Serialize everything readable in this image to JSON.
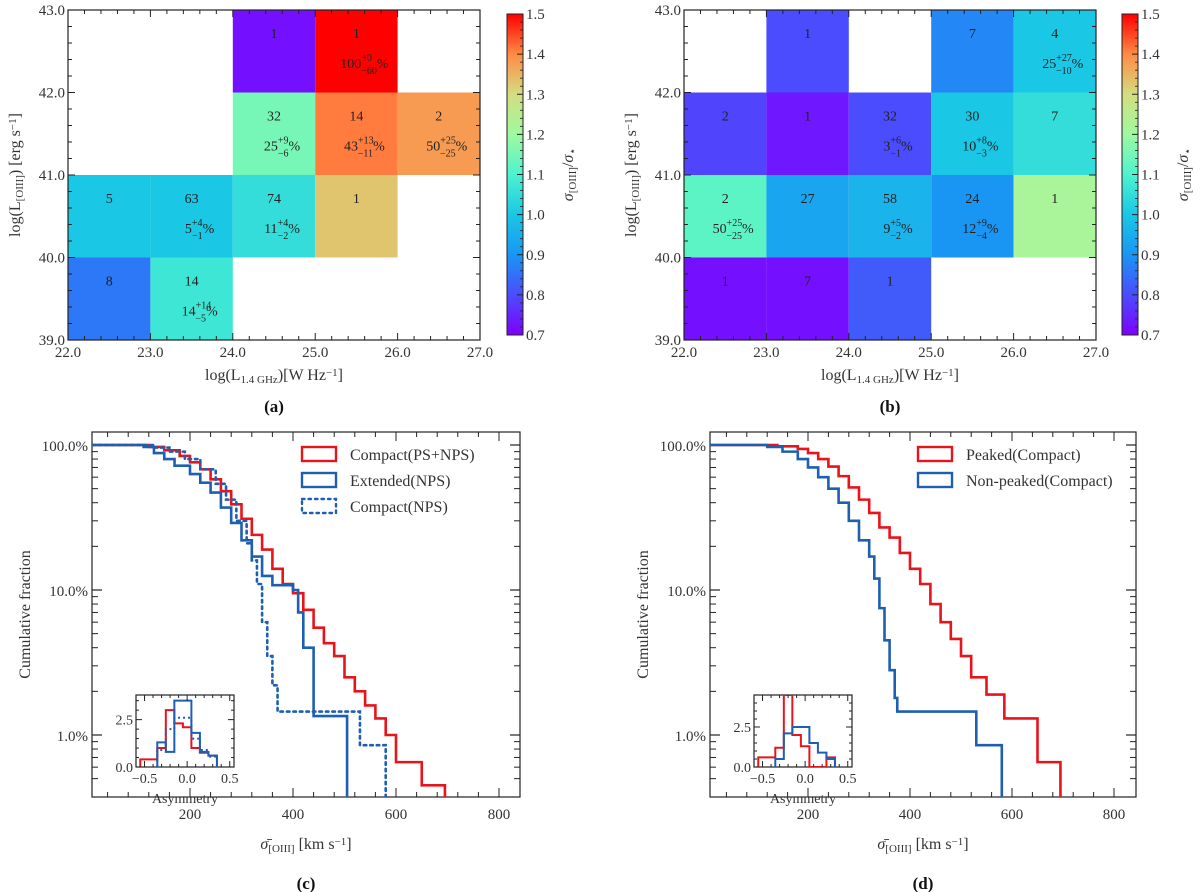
{
  "chart_data": [
    {
      "id": "a",
      "type": "heatmap",
      "panel_label": "(a)",
      "xlabel": "log(L_{1.4 GHz})[W Hz^{-1}]",
      "ylabel": "log(L_{[OIII]}) [erg s^{-1}]",
      "xlim": [
        22.0,
        27.0
      ],
      "ylim": [
        39.0,
        43.0
      ],
      "xticks": [
        "22.0",
        "23.0",
        "24.0",
        "25.0",
        "26.0",
        "27.0"
      ],
      "yticks": [
        "39.0",
        "40.0",
        "41.0",
        "42.0",
        "43.0"
      ],
      "colorbar": {
        "label": "σ_[OIII]/σ_⋆",
        "range": [
          0.7,
          1.5
        ],
        "ticks": [
          "0.7",
          "0.8",
          "0.9",
          "1.0",
          "1.1",
          "1.2",
          "1.3",
          "1.4",
          "1.5"
        ]
      },
      "cells": [
        {
          "x": [
            24,
            25
          ],
          "y": [
            42,
            43
          ],
          "value": 0.72,
          "count": "1",
          "pct": null
        },
        {
          "x": [
            25,
            26
          ],
          "y": [
            42,
            43
          ],
          "value": 1.5,
          "count": "1",
          "pct": {
            "v": "100",
            "up": "+0",
            "dn": "−60"
          }
        },
        {
          "x": [
            24,
            25
          ],
          "y": [
            41,
            42
          ],
          "value": 1.15,
          "count": "32",
          "pct": {
            "v": "25",
            "up": "+9",
            "dn": "−6"
          }
        },
        {
          "x": [
            25,
            26
          ],
          "y": [
            41,
            42
          ],
          "value": 1.41,
          "count": "14",
          "pct": {
            "v": "43",
            "up": "+13",
            "dn": "−11"
          }
        },
        {
          "x": [
            26,
            27
          ],
          "y": [
            41,
            42
          ],
          "value": 1.38,
          "count": "2",
          "pct": {
            "v": "50",
            "up": "+25",
            "dn": "−25"
          }
        },
        {
          "x": [
            22,
            23
          ],
          "y": [
            40,
            41
          ],
          "value": 1.0,
          "count": "5",
          "pct": null
        },
        {
          "x": [
            23,
            24
          ],
          "y": [
            40,
            41
          ],
          "value": 1.0,
          "count": "63",
          "pct": {
            "v": "5",
            "up": "+4",
            "dn": "−1"
          }
        },
        {
          "x": [
            24,
            25
          ],
          "y": [
            40,
            41
          ],
          "value": 1.05,
          "count": "74",
          "pct": {
            "v": "11",
            "up": "+4",
            "dn": "−2"
          }
        },
        {
          "x": [
            25,
            26
          ],
          "y": [
            40,
            41
          ],
          "value": 1.33,
          "count": "1",
          "pct": null
        },
        {
          "x": [
            22,
            23
          ],
          "y": [
            39,
            40
          ],
          "value": 0.86,
          "count": "8",
          "pct": null
        },
        {
          "x": [
            23,
            24
          ],
          "y": [
            39,
            40
          ],
          "value": 1.07,
          "count": "14",
          "pct": {
            "v": "14",
            "up": "+14",
            "dn": "−5"
          }
        }
      ]
    },
    {
      "id": "b",
      "type": "heatmap",
      "panel_label": "(b)",
      "xlabel": "log(L_{1.4 GHz})[W Hz^{-1}]",
      "ylabel": "log(L_{[OIII]}) [erg s^{-1}]",
      "xlim": [
        22.0,
        27.0
      ],
      "ylim": [
        39.0,
        43.0
      ],
      "xticks": [
        "22.0",
        "23.0",
        "24.0",
        "25.0",
        "26.0",
        "27.0"
      ],
      "yticks": [
        "39.0",
        "40.0",
        "41.0",
        "42.0",
        "43.0"
      ],
      "colorbar": {
        "label": "σ_[OIII]/σ_⋆",
        "range": [
          0.7,
          1.5
        ],
        "ticks": [
          "0.7",
          "0.8",
          "0.9",
          "1.0",
          "1.1",
          "1.2",
          "1.3",
          "1.4",
          "1.5"
        ]
      },
      "cells": [
        {
          "x": [
            23,
            24
          ],
          "y": [
            42,
            43
          ],
          "value": 0.8,
          "count": "1",
          "pct": null
        },
        {
          "x": [
            25,
            26
          ],
          "y": [
            42,
            43
          ],
          "value": 0.88,
          "count": "7",
          "pct": null
        },
        {
          "x": [
            26,
            27
          ],
          "y": [
            42,
            43
          ],
          "value": 1.0,
          "count": "4",
          "pct": {
            "v": "25",
            "up": "+27",
            "dn": "−10"
          }
        },
        {
          "x": [
            22,
            23
          ],
          "y": [
            41,
            42
          ],
          "value": 0.79,
          "count": "2",
          "pct": null
        },
        {
          "x": [
            23,
            24
          ],
          "y": [
            41,
            42
          ],
          "value": 0.73,
          "count": "1",
          "pct": null
        },
        {
          "x": [
            24,
            25
          ],
          "y": [
            41,
            42
          ],
          "value": 0.8,
          "count": "32",
          "pct": {
            "v": "3",
            "up": "+6",
            "dn": "−1"
          }
        },
        {
          "x": [
            25,
            26
          ],
          "y": [
            41,
            42
          ],
          "value": 1.0,
          "count": "30",
          "pct": {
            "v": "10",
            "up": "+8",
            "dn": "−3"
          }
        },
        {
          "x": [
            26,
            27
          ],
          "y": [
            41,
            42
          ],
          "value": 1.05,
          "count": "7",
          "pct": null
        },
        {
          "x": [
            22,
            23
          ],
          "y": [
            40,
            41
          ],
          "value": 1.12,
          "count": "2",
          "pct": {
            "v": "50",
            "up": "+25",
            "dn": "−25"
          }
        },
        {
          "x": [
            23,
            24
          ],
          "y": [
            40,
            41
          ],
          "value": 0.93,
          "count": "27",
          "pct": null
        },
        {
          "x": [
            24,
            25
          ],
          "y": [
            40,
            41
          ],
          "value": 0.96,
          "count": "58",
          "pct": {
            "v": "9",
            "up": "+5",
            "dn": "−2"
          }
        },
        {
          "x": [
            25,
            26
          ],
          "y": [
            40,
            41
          ],
          "value": 0.9,
          "count": "24",
          "pct": {
            "v": "12",
            "up": "+9",
            "dn": "−4"
          }
        },
        {
          "x": [
            26,
            27
          ],
          "y": [
            40,
            41
          ],
          "value": 1.22,
          "count": "1",
          "pct": null
        },
        {
          "x": [
            22,
            23
          ],
          "y": [
            39,
            40
          ],
          "value": 0.72,
          "count": "1",
          "pct": null
        },
        {
          "x": [
            23,
            24
          ],
          "y": [
            39,
            40
          ],
          "value": 0.72,
          "count": "7",
          "pct": null
        },
        {
          "x": [
            24,
            25
          ],
          "y": [
            39,
            40
          ],
          "value": 0.82,
          "count": "1",
          "pct": null
        }
      ]
    },
    {
      "id": "c",
      "type": "line",
      "panel_label": "(c)",
      "xlabel": "σ̄_[OIII] [km s^{-1}]",
      "ylabel": "Cumulative  fraction",
      "xlim": [
        0,
        840
      ],
      "ylim_percent": [
        0.42,
        110
      ],
      "yscale": "log",
      "xticks": [
        "200",
        "400",
        "600",
        "800"
      ],
      "yticks": [
        "1.0%",
        "10.0%",
        "100.0%"
      ],
      "legend_position": "top-right",
      "series": [
        {
          "name": "Compact(PS+NPS)",
          "color": "#e8141b",
          "style": "solid",
          "x": [
            20,
            90,
            120,
            150,
            180,
            200,
            220,
            240,
            260,
            280,
            300,
            320,
            340,
            360,
            380,
            400,
            420,
            440,
            460,
            480,
            500,
            520,
            540,
            560,
            580,
            600,
            650,
            695,
            695
          ],
          "y": [
            100,
            100,
            97,
            92,
            84,
            76,
            68,
            58,
            48,
            39,
            31,
            24,
            19,
            14,
            11,
            9.5,
            7.3,
            5.5,
            4.3,
            3.5,
            2.5,
            2.0,
            1.6,
            1.3,
            1.0,
            0.65,
            0.45,
            0.42,
            0.42
          ]
        },
        {
          "name": "Extended(NPS)",
          "color": "#1f5fb0",
          "style": "solid",
          "x": [
            20,
            90,
            110,
            130,
            150,
            170,
            200,
            220,
            240,
            260,
            280,
            300,
            320,
            340,
            360,
            380,
            400,
            410,
            420,
            440,
            505,
            505
          ],
          "y": [
            100,
            100,
            97,
            88,
            80,
            72,
            63,
            55,
            47,
            37,
            29,
            22,
            17,
            12.5,
            10.8,
            10.8,
            10,
            7,
            4,
            1.35,
            1.35,
            0.42
          ]
        },
        {
          "name": "Compact(NPS)",
          "color": "#1f5fb0",
          "style": "dotted",
          "x": [
            20,
            100,
            130,
            160,
            190,
            220,
            250,
            270,
            290,
            310,
            320,
            330,
            340,
            350,
            360,
            370,
            375,
            530,
            530,
            580,
            580
          ],
          "y": [
            100,
            100,
            96,
            90,
            80,
            68,
            54,
            42,
            30,
            21,
            16,
            11,
            6,
            3.5,
            2.2,
            1.45,
            1.45,
            1.45,
            0.85,
            0.85,
            0.42
          ]
        }
      ],
      "inset": {
        "xlabel": "Asymmetry",
        "xlim": [
          -0.6,
          0.55
        ],
        "ylim": [
          0,
          3.8
        ],
        "xticks": [
          "−0.5",
          "0.0",
          "0.5"
        ],
        "yticks": [
          "0.0",
          "2.5"
        ],
        "series": [
          {
            "name": "Compact(PS+NPS)",
            "color": "#e8141b",
            "style": "solid",
            "edges": [
              -0.55,
              -0.45,
              -0.35,
              -0.25,
              -0.15,
              -0.05,
              0.05,
              0.15,
              0.25,
              0.35
            ],
            "values": [
              0.4,
              0.4,
              1.0,
              3.0,
              2.3,
              2.1,
              1.0,
              0.75,
              0.6
            ]
          },
          {
            "name": "Extended(NPS)",
            "color": "#1f5fb0",
            "style": "solid",
            "edges": [
              -0.35,
              -0.25,
              -0.15,
              -0.05,
              0.05,
              0.15,
              0.25,
              0.35
            ],
            "values": [
              1.3,
              0.8,
              3.5,
              3.5,
              1.8,
              0.8,
              0.6
            ]
          },
          {
            "name": "Compact(NPS)",
            "color": "#1f5fb0",
            "style": "dotted",
            "edges": [
              -0.35,
              -0.25,
              -0.15,
              -0.05,
              0.05,
              0.15,
              0.25,
              0.35
            ],
            "values": [
              0.9,
              2.0,
              2.6,
              2.6,
              1.5,
              0.9,
              0.55
            ]
          }
        ]
      }
    },
    {
      "id": "d",
      "type": "line",
      "panel_label": "(d)",
      "xlabel": "σ̄_[OIII] [km s^{-1}]",
      "ylabel": "Cumulative  fraction",
      "xlim": [
        0,
        840
      ],
      "ylim_percent": [
        0.42,
        110
      ],
      "yscale": "log",
      "xticks": [
        "200",
        "400",
        "600",
        "800"
      ],
      "yticks": [
        "1.0%",
        "10.0%",
        "100.0%"
      ],
      "legend_position": "top-right",
      "series": [
        {
          "name": "Peaked(Compact)",
          "color": "#e8141b",
          "style": "solid",
          "x": [
            20,
            100,
            140,
            180,
            200,
            220,
            240,
            260,
            280,
            300,
            320,
            340,
            360,
            380,
            400,
            420,
            440,
            460,
            480,
            500,
            520,
            550,
            585,
            650,
            695,
            695
          ],
          "y": [
            100,
            100,
            98,
            94,
            88,
            80,
            71,
            61,
            51,
            42,
            34,
            27,
            23,
            18,
            14,
            11,
            8,
            6,
            4.6,
            3.5,
            2.5,
            1.9,
            1.3,
            0.65,
            0.45,
            0.42
          ]
        },
        {
          "name": "Non-peaked(Compact)",
          "color": "#1f5fb0",
          "style": "solid",
          "x": [
            20,
            90,
            120,
            150,
            180,
            200,
            220,
            240,
            260,
            280,
            300,
            320,
            330,
            340,
            350,
            360,
            370,
            375,
            530,
            530,
            580,
            580
          ],
          "y": [
            100,
            100,
            97,
            90,
            80,
            70,
            60,
            50,
            40,
            30,
            22,
            17,
            12,
            7.5,
            4.5,
            2.8,
            1.8,
            1.45,
            1.45,
            0.85,
            0.85,
            0.42
          ]
        }
      ],
      "inset": {
        "xlabel": "Asymmetry",
        "xlim": [
          -0.6,
          0.55
        ],
        "ylim": [
          0,
          4.5
        ],
        "xticks": [
          "−0.5",
          "0.0",
          "0.5"
        ],
        "yticks": [
          "2.5"
        ],
        "extra_ytick_label": "0.0",
        "series": [
          {
            "name": "Peaked(Compact)",
            "color": "#e8141b",
            "style": "solid",
            "edges": [
              -0.55,
              -0.45,
              -0.35,
              -0.25,
              -0.15,
              -0.05,
              0.05,
              0.15,
              0.25,
              0.35
            ],
            "values": [
              0.6,
              0.6,
              1.2,
              4.5,
              2.0,
              1.3,
              0.0,
              0.0,
              0.6
            ]
          },
          {
            "name": "Non-peaked(Compact)",
            "color": "#1f5fb0",
            "style": "solid",
            "edges": [
              -0.35,
              -0.25,
              -0.15,
              -0.05,
              0.05,
              0.15,
              0.25,
              0.35
            ],
            "values": [
              0.5,
              2.1,
              2.5,
              2.5,
              1.5,
              0.9,
              0.5
            ]
          }
        ]
      }
    }
  ]
}
